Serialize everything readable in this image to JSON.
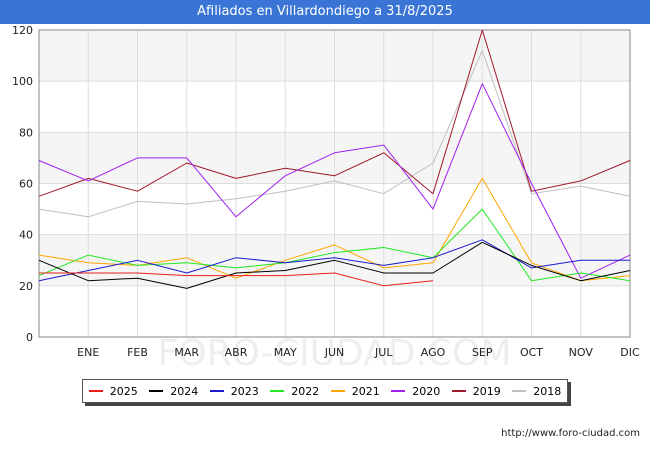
{
  "header": {
    "title": "Afiliados en Villardondiego a 31/8/2025"
  },
  "footer": {
    "url": "http://www.foro-ciudad.com"
  },
  "watermark": "FORO-CIUDAD.COM",
  "chart_data": {
    "type": "line",
    "title": "Afiliados en Villardondiego a 31/8/2025",
    "xlabel": "",
    "ylabel": "",
    "ylim": [
      0,
      120
    ],
    "yticks": [
      0,
      20,
      40,
      60,
      80,
      100,
      120
    ],
    "grid": true,
    "legend_position": "bottom",
    "categories": [
      "",
      "ENE",
      "FEB",
      "MAR",
      "ABR",
      "MAY",
      "JUN",
      "JUL",
      "AGO",
      "SEP",
      "OCT",
      "NOV",
      "DIC"
    ],
    "series": [
      {
        "name": "2025",
        "color": "#e8201a",
        "values": [
          25,
          25,
          25,
          24,
          24,
          24,
          25,
          20,
          22,
          null,
          null,
          null,
          null
        ]
      },
      {
        "name": "2024",
        "color": "#000000",
        "values": [
          30,
          22,
          23,
          19,
          25,
          26,
          30,
          25,
          25,
          37,
          28,
          22,
          26
        ]
      },
      {
        "name": "2023",
        "color": "#1a1acc",
        "values": [
          22,
          26,
          30,
          25,
          31,
          29,
          31,
          28,
          31,
          38,
          27,
          30,
          30
        ]
      },
      {
        "name": "2022",
        "color": "#22e822",
        "values": [
          24,
          32,
          28,
          29,
          27,
          29,
          33,
          35,
          31,
          50,
          22,
          25,
          22
        ]
      },
      {
        "name": "2021",
        "color": "#ffa500",
        "values": [
          32,
          29,
          28,
          31,
          23,
          30,
          36,
          27,
          29,
          62,
          29,
          22,
          24
        ]
      },
      {
        "name": "2020",
        "color": "#a020f0",
        "values": [
          69,
          61,
          70,
          70,
          47,
          63,
          72,
          75,
          50,
          99,
          60,
          23,
          32
        ]
      },
      {
        "name": "2019",
        "color": "#a0182a",
        "values": [
          55,
          62,
          57,
          68,
          62,
          66,
          63,
          72,
          56,
          120,
          57,
          61,
          69
        ]
      },
      {
        "name": "2018",
        "color": "#c0c0c0",
        "values": [
          50,
          47,
          53,
          52,
          54,
          57,
          61,
          56,
          68,
          112,
          56,
          59,
          55
        ]
      }
    ]
  }
}
